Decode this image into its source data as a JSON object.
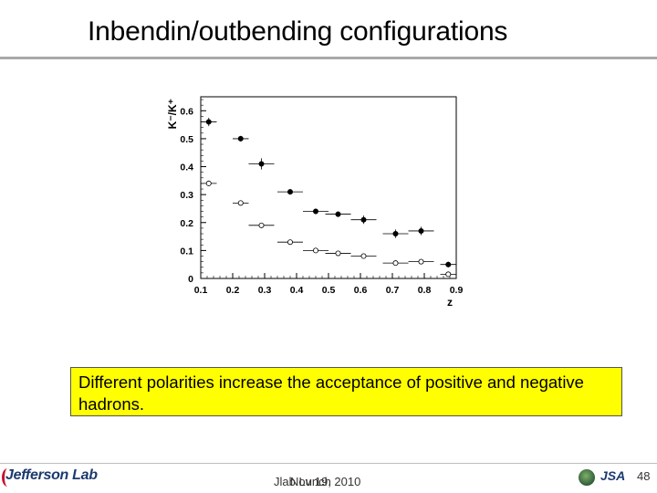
{
  "slide": {
    "title": "Inbendin/outbending configurations",
    "callout_text": "Different polarities increase the acceptance of positive and negative hadrons.",
    "footer_center_a": "Jlab Lunch",
    "footer_center_b": "Nov 19, 2010",
    "footer_logo": "Jefferson Lab",
    "footer_jsa": "JSA",
    "page_number": "48"
  },
  "chart_data": {
    "type": "scatter",
    "title": "",
    "xlabel": "z",
    "ylabel": "K⁻/K⁺",
    "xlim": [
      0.1,
      0.9
    ],
    "ylim": [
      0,
      0.65
    ],
    "xticks": [
      "0.1",
      "0.2",
      "0.3",
      "0.4",
      "0.5",
      "0.6",
      "0.7",
      "0.8",
      "0.9"
    ],
    "yticks": [
      "0",
      "0.1",
      "0.2",
      "0.3",
      "0.4",
      "0.5",
      "0.6"
    ],
    "grid": false,
    "legend": "none",
    "series": [
      {
        "marker": "filled",
        "color": "#000000",
        "x": [
          0.125,
          0.225,
          0.29,
          0.38,
          0.46,
          0.53,
          0.61,
          0.71,
          0.79,
          0.875
        ],
        "y": [
          0.56,
          0.5,
          0.41,
          0.31,
          0.24,
          0.23,
          0.21,
          0.16,
          0.17,
          0.05
        ],
        "xerr": [
          0.025,
          0.025,
          0.04,
          0.04,
          0.04,
          0.04,
          0.04,
          0.04,
          0.04,
          0.025
        ],
        "yerr": [
          0.015,
          0.01,
          0.02,
          0.01,
          0.01,
          0.01,
          0.015,
          0.015,
          0.015,
          0.01
        ]
      },
      {
        "marker": "open",
        "color": "#000000",
        "x": [
          0.125,
          0.225,
          0.29,
          0.38,
          0.46,
          0.53,
          0.61,
          0.71,
          0.79,
          0.875
        ],
        "y": [
          0.34,
          0.27,
          0.19,
          0.13,
          0.1,
          0.09,
          0.08,
          0.055,
          0.06,
          0.015
        ],
        "xerr": [
          0.025,
          0.025,
          0.04,
          0.04,
          0.04,
          0.04,
          0.04,
          0.04,
          0.04,
          0.025
        ],
        "yerr": [
          0.01,
          0.008,
          0.008,
          0.005,
          0.005,
          0.005,
          0.005,
          0.005,
          0.005,
          0.004
        ]
      }
    ]
  }
}
